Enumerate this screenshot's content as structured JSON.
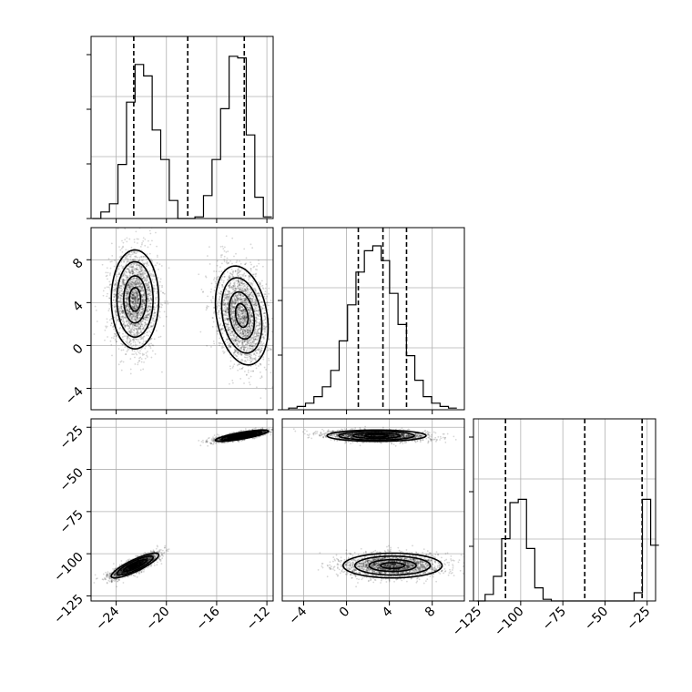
{
  "chart_data": {
    "type": "corner",
    "parameters": [
      {
        "axis_ticks": [
          -24,
          -20,
          -16,
          -12
        ],
        "range": [
          -26.0,
          -11.5
        ],
        "hist_bins": [
          0,
          0.04,
          0.09,
          0.33,
          0.71,
          0.94,
          0.87,
          0.54,
          0.36,
          0.11,
          0,
          0,
          0.01,
          0.14,
          0.36,
          0.67,
          0.99,
          0.98,
          0.51,
          0.13,
          0.01
        ],
        "hist_range": [
          -25.9,
          -11.6
        ],
        "quantiles": [
          -22.6,
          -18.3,
          -13.8
        ]
      },
      {
        "axis_ticks": [
          -4,
          0,
          4,
          8
        ],
        "range": [
          -6.0,
          11.0
        ],
        "hist_bins": [
          0.01,
          0.02,
          0.04,
          0.08,
          0.14,
          0.24,
          0.42,
          0.64,
          0.84,
          0.97,
          1.0,
          0.91,
          0.71,
          0.52,
          0.33,
          0.18,
          0.08,
          0.04,
          0.02,
          0.01
        ],
        "hist_range": [
          -5.4,
          10.3
        ],
        "quantiles": [
          1.1,
          3.4,
          5.6
        ]
      },
      {
        "axis_ticks": [
          -125,
          -100,
          -75,
          -50,
          -25
        ],
        "range": [
          -128,
          -20
        ],
        "hist_bins": [
          0,
          0.04,
          0.15,
          0.38,
          0.6,
          0.62,
          0.32,
          0.08,
          0.01,
          0,
          0,
          0,
          0,
          0,
          0,
          0,
          0,
          0,
          0,
          0.05,
          0.62,
          0.34
        ],
        "hist_range": [
          -126,
          -18
        ],
        "quantiles": [
          -109,
          -62,
          -28
        ]
      }
    ],
    "clusters": [
      {
        "center": [
          -22.5,
          4.3,
          -107.0
        ],
        "sd": [
          0.9,
          2.2,
          3.5
        ],
        "corr": {
          "0-2": 0.85
        }
      },
      {
        "center": [
          -14.0,
          2.8,
          -30.0
        ],
        "sd": [
          1.0,
          2.2,
          1.6
        ],
        "corr": {
          "0-1": -0.25,
          "0-2": 0.8
        }
      }
    ],
    "grid": true
  }
}
